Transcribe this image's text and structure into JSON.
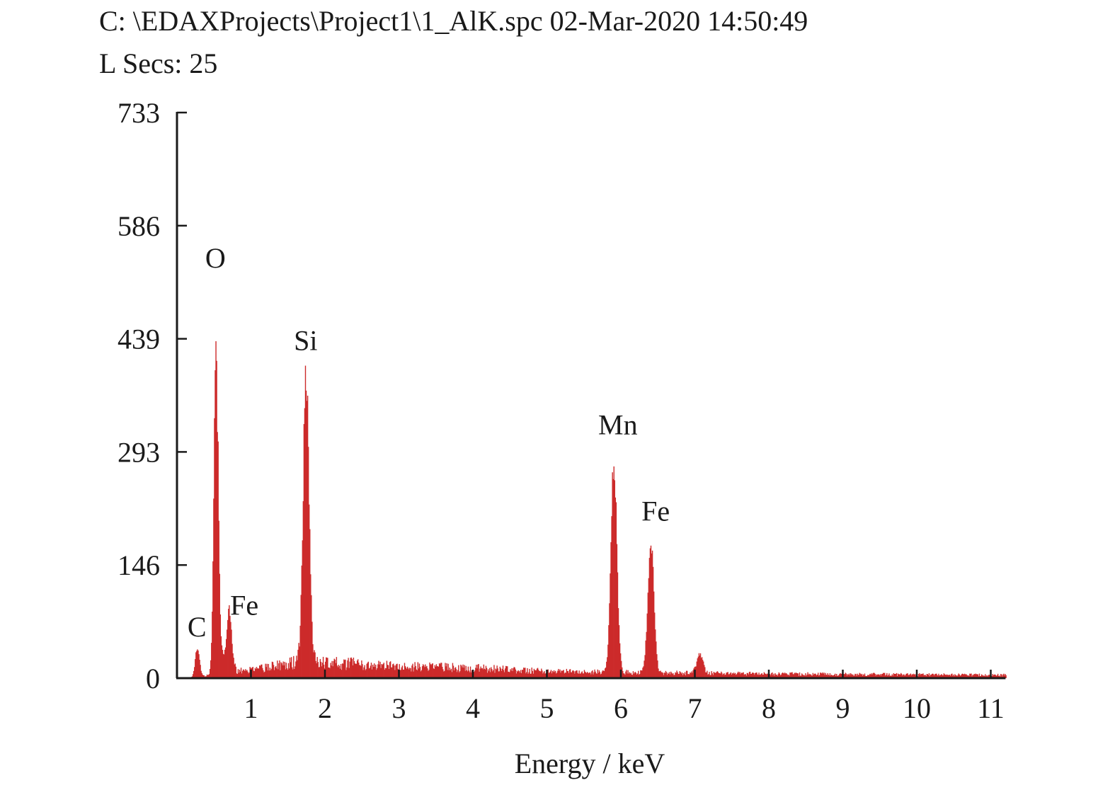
{
  "header": {
    "file_info": "C: \\EDAXProjects\\Project1\\1_AlK.spc 02-Mar-2020 14:50:49",
    "live_secs": "L Secs: 25"
  },
  "colors": {
    "bars": "#cc2a2a",
    "axis": "#1a1a1a"
  },
  "chart_data": {
    "type": "bar",
    "xlabel": "Energy / keV",
    "ylabel": "",
    "xlim": [
      0,
      11.2
    ],
    "ylim": [
      0,
      733
    ],
    "yticks": [
      "0",
      "146",
      "293",
      "439",
      "586",
      "733"
    ],
    "xticks": [
      "1",
      "2",
      "3",
      "4",
      "5",
      "6",
      "7",
      "8",
      "9",
      "10",
      "11"
    ],
    "grid": false,
    "background_counts": [
      [
        0.9,
        10
      ],
      [
        1.5,
        18
      ],
      [
        1.6,
        21
      ],
      [
        2.0,
        20
      ],
      [
        3.0,
        16
      ],
      [
        4.0,
        13
      ],
      [
        5.0,
        9
      ],
      [
        5.6,
        8
      ],
      [
        7.5,
        6
      ],
      [
        9.0,
        5
      ],
      [
        11.2,
        4
      ]
    ],
    "peaks": [
      {
        "label": "C",
        "energy": 0.27,
        "counts": 42
      },
      {
        "label": "O",
        "energy": 0.52,
        "counts": 468
      },
      {
        "label": "Fe",
        "energy": 0.7,
        "counts": 78
      },
      {
        "label": "Si",
        "energy": 1.74,
        "counts": 400
      },
      {
        "label": "Mn",
        "energy": 5.9,
        "counts": 296
      },
      {
        "label": "Fe",
        "energy": 6.4,
        "counts": 188
      },
      {
        "label": "",
        "energy": 7.06,
        "counts": 28
      }
    ],
    "annotations": [
      {
        "text": "C",
        "energy": 0.27,
        "counts": 65
      },
      {
        "text": "O",
        "energy": 0.52,
        "counts": 543
      },
      {
        "text": "Fe",
        "energy": 0.91,
        "counts": 93
      },
      {
        "text": "Si",
        "energy": 1.74,
        "counts": 436
      },
      {
        "text": "Mn",
        "energy": 5.96,
        "counts": 327
      },
      {
        "text": "Fe",
        "energy": 6.47,
        "counts": 215
      }
    ]
  }
}
